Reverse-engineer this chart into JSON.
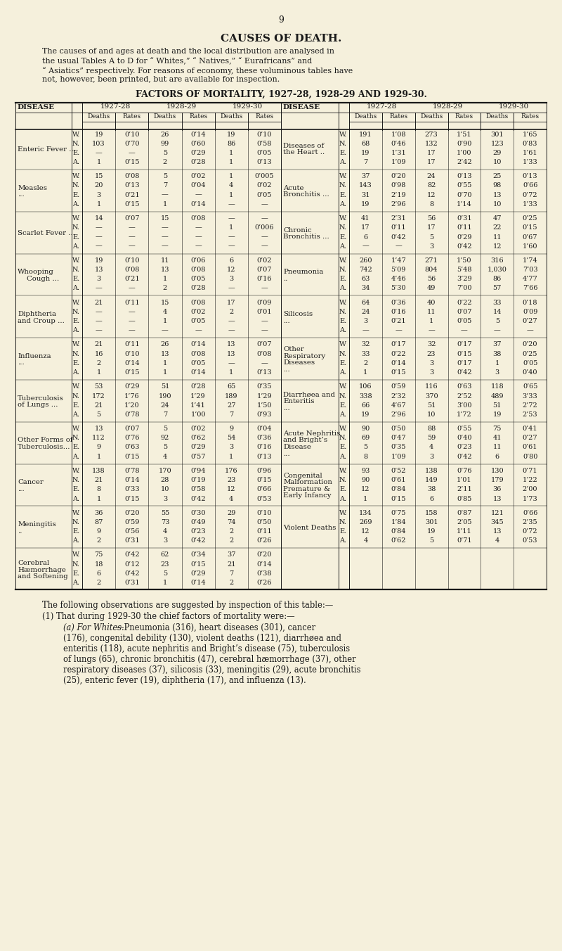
{
  "page_number": "9",
  "title": "CAUSES OF DEATH.",
  "intro_text": "The causes of and ages at death and the local distribution are analysed in\nthe usual Tables A to D for “ Whites,” “ Natives,” “ Eurafricans” and\n“ Asiatics” respectively. For reasons of economy, these voluminous tables have\nnot, however, been printed, but are available for inspection.",
  "table_title": "FACTORS OF MORTALITY, 1927-28, 1928-29 AND 1929-30.",
  "bg_color": "#f5f0dc",
  "rows_left": [
    {
      "disease": [
        "Enteric Fever ..."
      ],
      "disease_indent": [
        0
      ],
      "rows": [
        [
          "W.",
          "19",
          "0’10",
          "26",
          "0’14",
          "19",
          "0’10"
        ],
        [
          "N.",
          "103",
          "0’70",
          "99",
          "0’60",
          "86",
          "0’58"
        ],
        [
          "E.",
          "—",
          "—",
          "5",
          "0’29",
          "1",
          "0’05"
        ],
        [
          "A.",
          "1",
          "0’15",
          "2",
          "0’28",
          "1",
          "0’13"
        ]
      ]
    },
    {
      "disease": [
        "Measles",
        "..."
      ],
      "disease_indent": [
        0,
        4
      ],
      "rows": [
        [
          "W.",
          "15",
          "0’08",
          "5",
          "0’02",
          "1",
          "0’005"
        ],
        [
          "N.",
          "20",
          "0’13",
          "7",
          "0’04",
          "4",
          "0’02"
        ],
        [
          "E.",
          "3",
          "0’21",
          "—",
          "—",
          "1",
          "0’05"
        ],
        [
          "A.",
          "1",
          "0’15",
          "1",
          "0’14",
          "—",
          "—"
        ]
      ]
    },
    {
      "disease": [
        "Scarlet Fever ..."
      ],
      "disease_indent": [
        0
      ],
      "rows": [
        [
          "W.",
          "14",
          "0’07",
          "15",
          "0’08",
          "—",
          "—"
        ],
        [
          "N.",
          "—",
          "—",
          "—",
          "—",
          "1",
          "0’006"
        ],
        [
          "E.",
          "—",
          "—",
          "—",
          "—",
          "—",
          "—"
        ],
        [
          "A.",
          "—",
          "—",
          "—",
          "—",
          "—",
          "—"
        ]
      ]
    },
    {
      "disease": [
        "Whooping",
        "    Cough ..."
      ],
      "disease_indent": [
        0,
        0
      ],
      "rows": [
        [
          "W.",
          "19",
          "0’10",
          "11",
          "0’06",
          "6",
          "0’02"
        ],
        [
          "N.",
          "13",
          "0’08",
          "13",
          "0’08",
          "12",
          "0’07"
        ],
        [
          "E.",
          "3",
          "0’21",
          "1",
          "0’05",
          "3",
          "0’16"
        ],
        [
          "A.",
          "—",
          "—",
          "2",
          "0’28",
          "—",
          "—"
        ]
      ]
    },
    {
      "disease": [
        "Diphtheria",
        "and Croup ..."
      ],
      "disease_indent": [
        0,
        0
      ],
      "rows": [
        [
          "W.",
          "21",
          "0’11",
          "15",
          "0’08",
          "17",
          "0’09"
        ],
        [
          "N.",
          "—",
          "—",
          "4",
          "0’02",
          "2",
          "0’01"
        ],
        [
          "E.",
          "—",
          "—",
          "1",
          "0’05",
          "—",
          "—"
        ],
        [
          "A.",
          "—",
          "—",
          "—",
          "—",
          "—",
          "—"
        ]
      ]
    },
    {
      "disease": [
        "Influenza",
        "..."
      ],
      "disease_indent": [
        0,
        4
      ],
      "rows": [
        [
          "W.",
          "21",
          "0’11",
          "26",
          "0’14",
          "13",
          "0’07"
        ],
        [
          "N.",
          "16",
          "0’10",
          "13",
          "0’08",
          "13",
          "0’08"
        ],
        [
          "E.",
          "2",
          "0’14",
          "1",
          "0’05",
          "—",
          "—"
        ],
        [
          "A.",
          "1",
          "0’15",
          "1",
          "0’14",
          "1",
          "0’13"
        ]
      ]
    },
    {
      "disease": [
        "Tuberculosis",
        "of Lungs ..."
      ],
      "disease_indent": [
        0,
        0
      ],
      "rows": [
        [
          "W.",
          "53",
          "0’29",
          "51",
          "0’28",
          "65",
          "0’35"
        ],
        [
          "N.",
          "172",
          "1’76",
          "190",
          "1’29",
          "189",
          "1’29"
        ],
        [
          "E.",
          "21",
          "1’20",
          "24",
          "1’41",
          "27",
          "1’50"
        ],
        [
          "A.",
          "5",
          "0’78",
          "7",
          "1’00",
          "7",
          "0’93"
        ]
      ]
    },
    {
      "disease": [
        "Other Forms of",
        "Tuberculosis..."
      ],
      "disease_indent": [
        0,
        0
      ],
      "rows": [
        [
          "W.",
          "13",
          "0’07",
          "5",
          "0’02",
          "9",
          "0’04"
        ],
        [
          "N.",
          "112",
          "0’76",
          "92",
          "0’62",
          "54",
          "0’36"
        ],
        [
          "E.",
          "9",
          "0’63",
          "5",
          "0’29",
          "3",
          "0’16"
        ],
        [
          "A.",
          "1",
          "0’15",
          "4",
          "0’57",
          "1",
          "0’13"
        ]
      ]
    },
    {
      "disease": [
        "Cancer",
        "..."
      ],
      "disease_indent": [
        0,
        4
      ],
      "rows": [
        [
          "W.",
          "138",
          "0’78",
          "170",
          "0’94",
          "176",
          "0’96"
        ],
        [
          "N.",
          "21",
          "0’14",
          "28",
          "0’19",
          "23",
          "0’15"
        ],
        [
          "E.",
          "8",
          "0’33",
          "10",
          "0’58",
          "12",
          "0’66"
        ],
        [
          "A.",
          "1",
          "0’15",
          "3",
          "0’42",
          "4",
          "0’53"
        ]
      ]
    },
    {
      "disease": [
        "Meningitis",
        ".."
      ],
      "disease_indent": [
        0,
        4
      ],
      "rows": [
        [
          "W.",
          "36",
          "0’20",
          "55",
          "0’30",
          "29",
          "0’10"
        ],
        [
          "N.",
          "87",
          "0’59",
          "73",
          "0’49",
          "74",
          "0’50"
        ],
        [
          "E.",
          "9",
          "0’56",
          "4",
          "0’23",
          "2",
          "0’11"
        ],
        [
          "A.",
          "2",
          "0’31",
          "3",
          "0’42",
          "2",
          "0’26"
        ]
      ]
    },
    {
      "disease": [
        "Cerebral",
        "Hæmorrhage",
        "and Softening"
      ],
      "disease_indent": [
        0,
        0,
        0
      ],
      "rows": [
        [
          "W.",
          "75",
          "0’42",
          "62",
          "0’34",
          "37",
          "0’20"
        ],
        [
          "N.",
          "18",
          "0’12",
          "23",
          "0’15",
          "21",
          "0’14"
        ],
        [
          "E.",
          "6",
          "0’42",
          "5",
          "0’29",
          "7",
          "0’38"
        ],
        [
          "A.",
          "2",
          "0’31",
          "1",
          "0’14",
          "2",
          "0’26"
        ]
      ]
    }
  ],
  "rows_right": [
    {
      "disease": [
        "Diseases of",
        "the Heart .."
      ],
      "disease_indent": [
        0,
        0
      ],
      "rows": [
        [
          "W.",
          "191",
          "1’08",
          "273",
          "1’51",
          "301",
          "1’65"
        ],
        [
          "N.",
          "68",
          "0’46",
          "132",
          "0’90",
          "123",
          "0’83"
        ],
        [
          "E.",
          "19",
          "1’31",
          "17",
          "1’00",
          "29",
          "1’61"
        ],
        [
          "A.",
          "7",
          "1’09",
          "17",
          "2’42",
          "10",
          "1’33"
        ]
      ]
    },
    {
      "disease": [
        "Acute",
        "Bronchitis ..."
      ],
      "disease_indent": [
        0,
        0
      ],
      "rows": [
        [
          "W.",
          "37",
          "0’20",
          "24",
          "0’13",
          "25",
          "0’13"
        ],
        [
          "N.",
          "143",
          "0’98",
          "82",
          "0’55",
          "98",
          "0’66"
        ],
        [
          "E.",
          "31",
          "2’19",
          "12",
          "0’70",
          "13",
          "0’72"
        ],
        [
          "A.",
          "19",
          "2’96",
          "8",
          "1’14",
          "10",
          "1’33"
        ]
      ]
    },
    {
      "disease": [
        "Chronic",
        "Bronchitis ..."
      ],
      "disease_indent": [
        0,
        0
      ],
      "rows": [
        [
          "W.",
          "41",
          "2’31",
          "56",
          "0’31",
          "47",
          "0’25"
        ],
        [
          "N.",
          "17",
          "0’11",
          "17",
          "0’11",
          "22",
          "0’15"
        ],
        [
          "E.",
          "6",
          "0’42",
          "5",
          "0’29",
          "11",
          "0’67"
        ],
        [
          "A.",
          "—",
          "—",
          "3",
          "0’42",
          "12",
          "1’60"
        ]
      ]
    },
    {
      "disease": [
        "Pneumonia",
        ".."
      ],
      "disease_indent": [
        0,
        4
      ],
      "rows": [
        [
          "W.",
          "260",
          "1’47",
          "271",
          "1’50",
          "316",
          "1’74"
        ],
        [
          "N.",
          "742",
          "5’09",
          "804",
          "5’48",
          "1,030",
          "7’03"
        ],
        [
          "E.",
          "63",
          "4’46",
          "56",
          "3’29",
          "86",
          "4’77"
        ],
        [
          "A.",
          "34",
          "5’30",
          "49",
          "7’00",
          "57",
          "7’66"
        ]
      ]
    },
    {
      "disease": [
        "Silicosis",
        "..."
      ],
      "disease_indent": [
        0,
        4
      ],
      "rows": [
        [
          "W.",
          "64",
          "0’36",
          "40",
          "0’22",
          "33",
          "0’18"
        ],
        [
          "N.",
          "24",
          "0’16",
          "11",
          "0’07",
          "14",
          "0’09"
        ],
        [
          "E.",
          "3",
          "0’21",
          "1",
          "0’05",
          "5",
          "0’27"
        ],
        [
          "A.",
          "—",
          "—",
          "—",
          "—",
          "—",
          "—"
        ]
      ]
    },
    {
      "disease": [
        "Other",
        "Respiratory",
        "Diseases",
        "..."
      ],
      "disease_indent": [
        0,
        0,
        0,
        4
      ],
      "rows": [
        [
          "W",
          "32",
          "0’17",
          "32",
          "0’17",
          "37",
          "0’20"
        ],
        [
          "N.",
          "33",
          "0’22",
          "23",
          "0’15",
          "38",
          "0’25"
        ],
        [
          "E.",
          "2",
          "0’14",
          "3",
          "0’17",
          "1",
          "0’05"
        ],
        [
          "A.",
          "1",
          "0’15",
          "3",
          "0’42",
          "3",
          "0’40"
        ]
      ]
    },
    {
      "disease": [
        "Diarrhøea and",
        "Enteritis",
        "..."
      ],
      "disease_indent": [
        0,
        0,
        4
      ],
      "rows": [
        [
          "W.",
          "106",
          "0’59",
          "116",
          "0’63",
          "118",
          "0’65"
        ],
        [
          "N.",
          "338",
          "2’32",
          "370",
          "2’52",
          "489",
          "3’33"
        ],
        [
          "E.",
          "66",
          "4’67",
          "51",
          "3’00",
          "51",
          "2’72"
        ],
        [
          "A.",
          "19",
          "2’96",
          "10",
          "1’72",
          "19",
          "2’53"
        ]
      ]
    },
    {
      "disease": [
        "Acute Nephritis",
        "and Bright’s",
        "Disease",
        "..."
      ],
      "disease_indent": [
        0,
        0,
        0,
        4
      ],
      "rows": [
        [
          "W.",
          "90",
          "0’50",
          "88",
          "0’55",
          "75",
          "0’41"
        ],
        [
          "N.",
          "69",
          "0’47",
          "59",
          "0’40",
          "41",
          "0’27"
        ],
        [
          "E.",
          "5",
          "0’35",
          "4",
          "0’23",
          "11",
          "0’61"
        ],
        [
          "A.",
          "8",
          "1’09",
          "3",
          "0’42",
          "6",
          "0’80"
        ]
      ]
    },
    {
      "disease": [
        "Congenital",
        "Malformation",
        "Premature &",
        "Early Infancy"
      ],
      "disease_indent": [
        0,
        0,
        0,
        0
      ],
      "rows": [
        [
          "W.",
          "93",
          "0’52",
          "138",
          "0’76",
          "130",
          "0’71"
        ],
        [
          "N.",
          "90",
          "0’61",
          "149",
          "1’01",
          "179",
          "1’22"
        ],
        [
          "E.",
          "12",
          "0’84",
          "38",
          "2’11",
          "36",
          "2’00"
        ],
        [
          "A.",
          "1",
          "0’15",
          "6",
          "0’85",
          "13",
          "1’73"
        ]
      ]
    },
    {
      "disease": [
        "Violent Deaths"
      ],
      "disease_indent": [
        0
      ],
      "rows": [
        [
          "W.",
          "134",
          "0’75",
          "158",
          "0’87",
          "121",
          "0’66"
        ],
        [
          "N.",
          "269",
          "1’84",
          "301",
          "2’05",
          "345",
          "2’35"
        ],
        [
          "E.",
          "12",
          "0’84",
          "19",
          "1’11",
          "13",
          "0’72"
        ],
        [
          "A.",
          "4",
          "0’62",
          "5",
          "0’71",
          "4",
          "0’53"
        ]
      ]
    }
  ],
  "footnote_title": "The following observations are suggested by inspection of this table:—",
  "footnote_1": "(1) That during 1929-30 the chief factors of mortality were:—",
  "footnote_1a_italic": "(a) For Whites.",
  "footnote_1a_rest": "—Pneumonia (316), heart diseases (301), cancer\n(176), congenital debility (130), violent deaths (121), diarrhøea and\nenteritis (118), acute nephritis and Bright’s disease (75), tuberculosis\nof lungs (65), chronic bronchitis (47), cerebral hæmorrhage (37), other\nrespiratory diseases (37), silicosis (33), meningitis (29), acute bronchitis\n(25), enteric fever (19), diphtheria (17), and influenza (13)."
}
